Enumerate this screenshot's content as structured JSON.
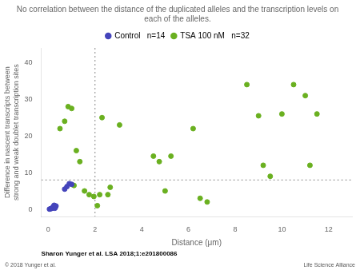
{
  "chart_data": {
    "type": "scatter",
    "title": "No correlation between the distance of the duplicated alleles and the transcription levels on\neach of the alleles.",
    "x_label": "Distance (μm)",
    "y_label": "Difference in nascent transcripts between\nstrong and weak doublet transcription sites",
    "xlim": [
      -0.3,
      13
    ],
    "ylim": [
      -2,
      44
    ],
    "xticks": [
      0,
      2,
      4,
      6,
      8,
      10,
      12
    ],
    "yticks": [
      0,
      10,
      20,
      30,
      40
    ],
    "grid": false,
    "legend": "top",
    "reference_lines": {
      "x": 2.0,
      "y": 8.0
    },
    "series": [
      {
        "name": "Control",
        "n_label": "n=14",
        "color": "#4444bb",
        "x": [
          0.05,
          0.1,
          0.15,
          0.18,
          0.2,
          0.22,
          0.25,
          0.28,
          0.3,
          0.33,
          0.7,
          0.8,
          0.9,
          1.0
        ],
        "y": [
          0.05,
          0.15,
          0.25,
          0.4,
          0.6,
          0.8,
          1.1,
          0.3,
          0.5,
          0.9,
          5.5,
          6.2,
          7.0,
          6.8
        ]
      },
      {
        "name": "TSA 100 nM",
        "n_label": "n=32",
        "color": "#6ab020",
        "x": [
          0.5,
          0.7,
          0.85,
          1.0,
          1.1,
          1.2,
          1.35,
          1.55,
          1.75,
          1.95,
          2.1,
          2.2,
          2.3,
          2.55,
          2.65,
          3.05,
          4.5,
          4.75,
          5.0,
          5.25,
          6.2,
          6.5,
          6.8,
          8.5,
          9.0,
          9.2,
          9.5,
          10.0,
          10.5,
          11.0,
          11.2,
          11.5
        ],
        "y": [
          22,
          24,
          28,
          27.5,
          6.5,
          16,
          13,
          5,
          4,
          3.5,
          1,
          4,
          25,
          4,
          6,
          23,
          14.5,
          13,
          5,
          14.5,
          22,
          3,
          2,
          34,
          25.5,
          12,
          9,
          26,
          34,
          31,
          12,
          26
        ]
      }
    ],
    "citation": "Sharon Yunger et al. LSA 2018;1:e201800086",
    "copyright": "© 2018 Yunger et al.",
    "source_label": "Life Science Alliance"
  }
}
